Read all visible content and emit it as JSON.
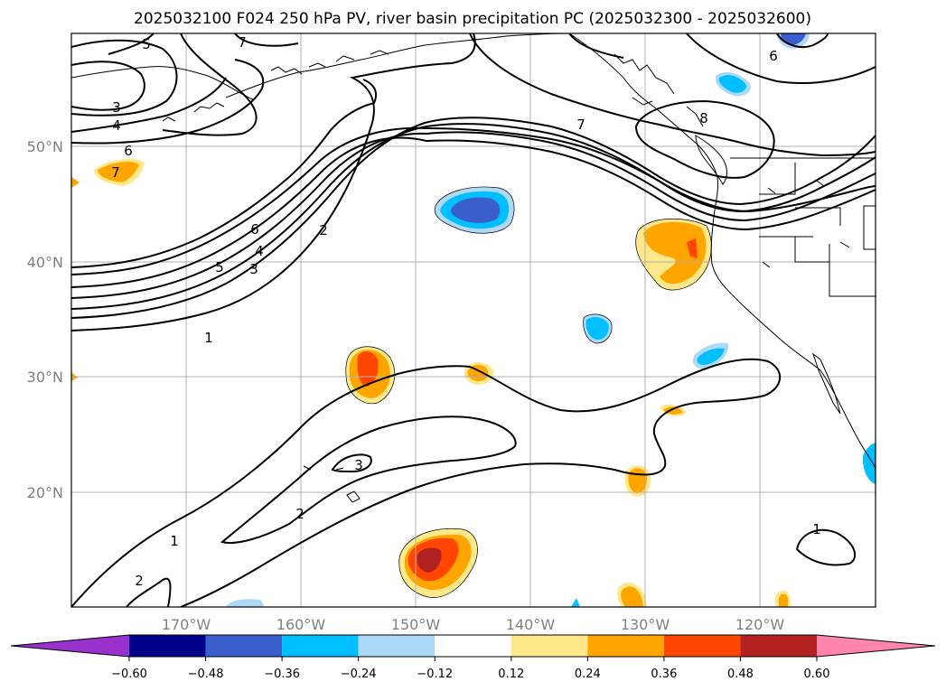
{
  "title": "2025032100 F024 250 hPa PV, river basin precipitation PC (2025032300 - 2025032600)",
  "map": {
    "lon_labels": [
      "170°W",
      "160°W",
      "150°W",
      "140°W",
      "130°W",
      "120°W"
    ],
    "lat_labels": [
      "50°N",
      "40°N",
      "30°N",
      "20°N"
    ]
  },
  "contour_labels": [
    "5",
    "7",
    "3",
    "4",
    "6",
    "7",
    "6",
    "5",
    "4",
    "3",
    "2",
    "1",
    "7",
    "8",
    "6",
    "3",
    "2",
    "1",
    "2",
    "1"
  ],
  "colorbar": {
    "ticks": [
      "−0.60",
      "−0.48",
      "−0.36",
      "−0.24",
      "−0.12",
      "0.12",
      "0.24",
      "0.36",
      "0.48",
      "0.60"
    ],
    "colors": [
      "#9932cc",
      "#00008b",
      "#3a5fcd",
      "#00bfff",
      "#add8f6",
      "#ffffff",
      "#ffe88a",
      "#ffa500",
      "#ff4500",
      "#b22222",
      "#ff85ad"
    ]
  },
  "colors": {
    "blue_light": "#add8f6",
    "blue_mid": "#00bfff",
    "blue_dark": "#3a5fcd",
    "orange_light": "#ffe88a",
    "orange": "#ffa500",
    "red": "#ff4500",
    "dark_red": "#b22222"
  }
}
